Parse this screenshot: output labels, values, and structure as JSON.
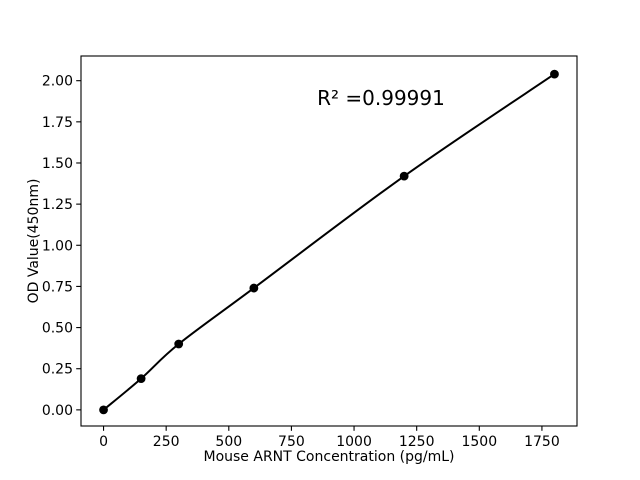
{
  "figure": {
    "background_color": "#ffffff"
  },
  "chart_data": {
    "type": "line",
    "title": "",
    "xlabel": "Mouse ARNT Concentration (pg/mL)",
    "ylabel": "OD Value(450nm)",
    "annotation": "R² =0.99991",
    "x": [
      0,
      150,
      300,
      600,
      1200,
      1800
    ],
    "y": [
      0.0,
      0.19,
      0.4,
      0.74,
      1.42,
      2.04
    ],
    "xticks": [
      0,
      250,
      500,
      750,
      1000,
      1250,
      1500,
      1750
    ],
    "xtick_labels": [
      "0",
      "250",
      "500",
      "750",
      "1000",
      "1250",
      "1500",
      "1750"
    ],
    "yticks": [
      0.0,
      0.25,
      0.5,
      0.75,
      1.0,
      1.25,
      1.5,
      1.75,
      2.0
    ],
    "ytick_labels": [
      "0.00",
      "0.25",
      "0.50",
      "0.75",
      "1.00",
      "1.25",
      "1.50",
      "1.75",
      "2.00"
    ],
    "xlim": [
      -90,
      1890
    ],
    "ylim": [
      -0.098,
      2.15
    ],
    "line_color": "#000000",
    "marker_color": "#000000",
    "marker": "circle",
    "grid": false,
    "legend": null
  }
}
